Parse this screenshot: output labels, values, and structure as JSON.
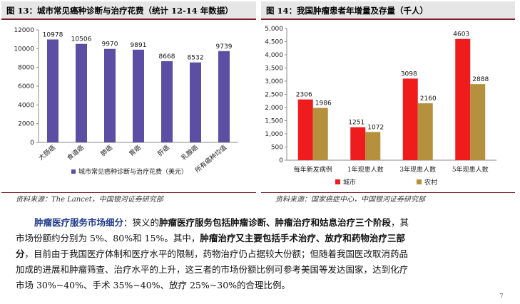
{
  "figure1": {
    "title": "图 13：城市常见癌种诊断与治疗花费（统计 12-14 年数据）",
    "source": "资料来源：The Lancet，中国银河证券研究部",
    "chart_data": {
      "type": "bar",
      "categories": [
        "大肠癌",
        "食道癌",
        "肺癌",
        "胃癌",
        "肝癌",
        "乳腺癌",
        "所有癌种均值"
      ],
      "series": [
        {
          "name": "城市常见癌种诊断与治疗花费（美元）",
          "values": [
            10978,
            10506,
            9970,
            9891,
            8668,
            8532,
            9739
          ]
        }
      ],
      "ylim": [
        0,
        12000
      ],
      "yticks": [
        0,
        2000,
        4000,
        6000,
        8000,
        10000,
        12000
      ],
      "data_labels": [
        "10978",
        "10506",
        "9970",
        "9891",
        "8668",
        "8532",
        "9739"
      ],
      "legend_position": "bottom",
      "grid": false,
      "colors": {
        "bar": "#5c4ea3"
      }
    }
  },
  "figure2": {
    "title": "图 14：我国肿瘤患者年增量及存量（千人）",
    "source": "资料来源：国家癌症中心，中国银河证券研究部",
    "chart_data": {
      "type": "bar",
      "categories": [
        "每年新发病例",
        "1年现患人数",
        "3年现患人数",
        "5年现患人数"
      ],
      "series": [
        {
          "name": "城市",
          "values": [
            2306,
            1251,
            3098,
            4603
          ]
        },
        {
          "name": "农村",
          "values": [
            1986,
            1072,
            2160,
            2888
          ]
        }
      ],
      "ylim": [
        0,
        5000
      ],
      "yticks": [
        0,
        500,
        1000,
        1500,
        2000,
        2500,
        3000,
        3500,
        4000,
        4500,
        5000
      ],
      "ytick_labels": [
        "0",
        "500",
        "1,000",
        "1,500",
        "2,000",
        "2,500",
        "3,000",
        "3,500",
        "4,000",
        "4,500",
        "5,000"
      ],
      "legend_position": "bottom",
      "grid": false,
      "colors": {
        "城市": "#ee1c1c",
        "农村": "#b5913e"
      }
    }
  },
  "body": {
    "s1": "肿瘤医疗服务市场细分",
    "s2": "：狭义的",
    "s3": "肿瘤医疗服务包括肿瘤诊断、肿瘤治疗和姑息治疗三个阶段",
    "s4": "，其市场份额约分别为 5%、80%和 15%。其中，",
    "s5": "肿瘤治疗又主要包括手术治疗、放疗和药物治疗三部分",
    "s6": "，目前由于我国医疗体制和医疗水平的限制，药物治疗仍占据较大份额；但随着我国医改取消药品加成的进展和肿瘤筛查、治疗水平的上升，这三者的市场份额比例可参考美国等发达国家，达到化疗市场 30%~40%、手术 35%~40%、放疗 25%~30%的合理比例。"
  },
  "page_number": "7"
}
